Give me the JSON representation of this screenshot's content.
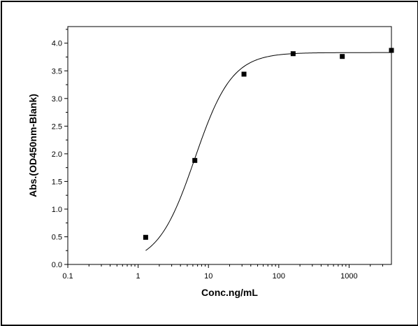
{
  "chart_data": {
    "type": "scatter",
    "title": "",
    "xlabel": "Conc.ng/mL",
    "ylabel": "Abs.(OD450nm-Blank)",
    "xscale": "log",
    "xlim": [
      0.1,
      4000
    ],
    "ylim": [
      0.0,
      4.3
    ],
    "x_ticks": [
      0.1,
      1,
      10,
      100,
      1000
    ],
    "x_tick_labels": [
      "0.1",
      "1",
      "10",
      "100",
      "1000"
    ],
    "y_ticks": [
      0.0,
      0.5,
      1.0,
      1.5,
      2.0,
      2.5,
      3.0,
      3.5,
      4.0
    ],
    "y_tick_labels": [
      "0.0",
      "0.5",
      "1.0",
      "1.5",
      "2.0",
      "2.5",
      "3.0",
      "3.5",
      "4.0"
    ],
    "grid": false,
    "legend": "none",
    "series": [
      {
        "marker": "square",
        "x": [
          1.28,
          6.4,
          32,
          160,
          800,
          4000
        ],
        "y": [
          0.49,
          1.88,
          3.44,
          3.81,
          3.76,
          3.87
        ]
      }
    ],
    "fit_curve": {
      "type": "4PL",
      "bottom": 0.0,
      "top": 3.83,
      "ec50": 6.4,
      "hill": 1.65,
      "x_start": 1.28,
      "x_end": 4000
    },
    "colors": {
      "marks": "#000000",
      "axes": "#000000",
      "background": "#ffffff"
    }
  }
}
